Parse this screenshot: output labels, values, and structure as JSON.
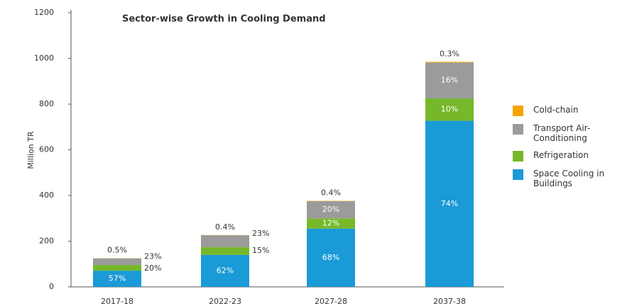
{
  "chart_data": {
    "type": "stacked_bar",
    "title": "Sector-wise Growth in Cooling Demand",
    "y_label": "Million TR",
    "categories": [
      "2017-18",
      "2022-23",
      "2027-28",
      "2037-38"
    ],
    "series": [
      {
        "name": "Space Cooling in Buildings",
        "color": "#1a9ad6",
        "values": [
          71,
          140,
          255,
          727
        ],
        "value_labels": [
          "57%",
          "62%",
          "68%",
          "74%"
        ]
      },
      {
        "name": "Refrigeration",
        "color": "#76b82a",
        "values": [
          25,
          34,
          45,
          98
        ],
        "value_labels": [
          "20%",
          "15%",
          "12%",
          "10%"
        ]
      },
      {
        "name": "Transport Air-Conditioning",
        "color": "#9b9b9b",
        "values": [
          29,
          52,
          75,
          157
        ],
        "value_labels": [
          "23%",
          "23%",
          "20%",
          "16%"
        ]
      },
      {
        "name": "Cold-chain",
        "color": "#f5a300",
        "values": [
          0.6,
          0.9,
          1.5,
          3
        ],
        "value_labels": [
          "0.5%",
          "0.4%",
          "0.4%",
          "0.3%"
        ]
      }
    ],
    "ylim": [
      0,
      1200
    ],
    "yticks": [
      0,
      200,
      400,
      600,
      800,
      1000,
      1200
    ]
  }
}
